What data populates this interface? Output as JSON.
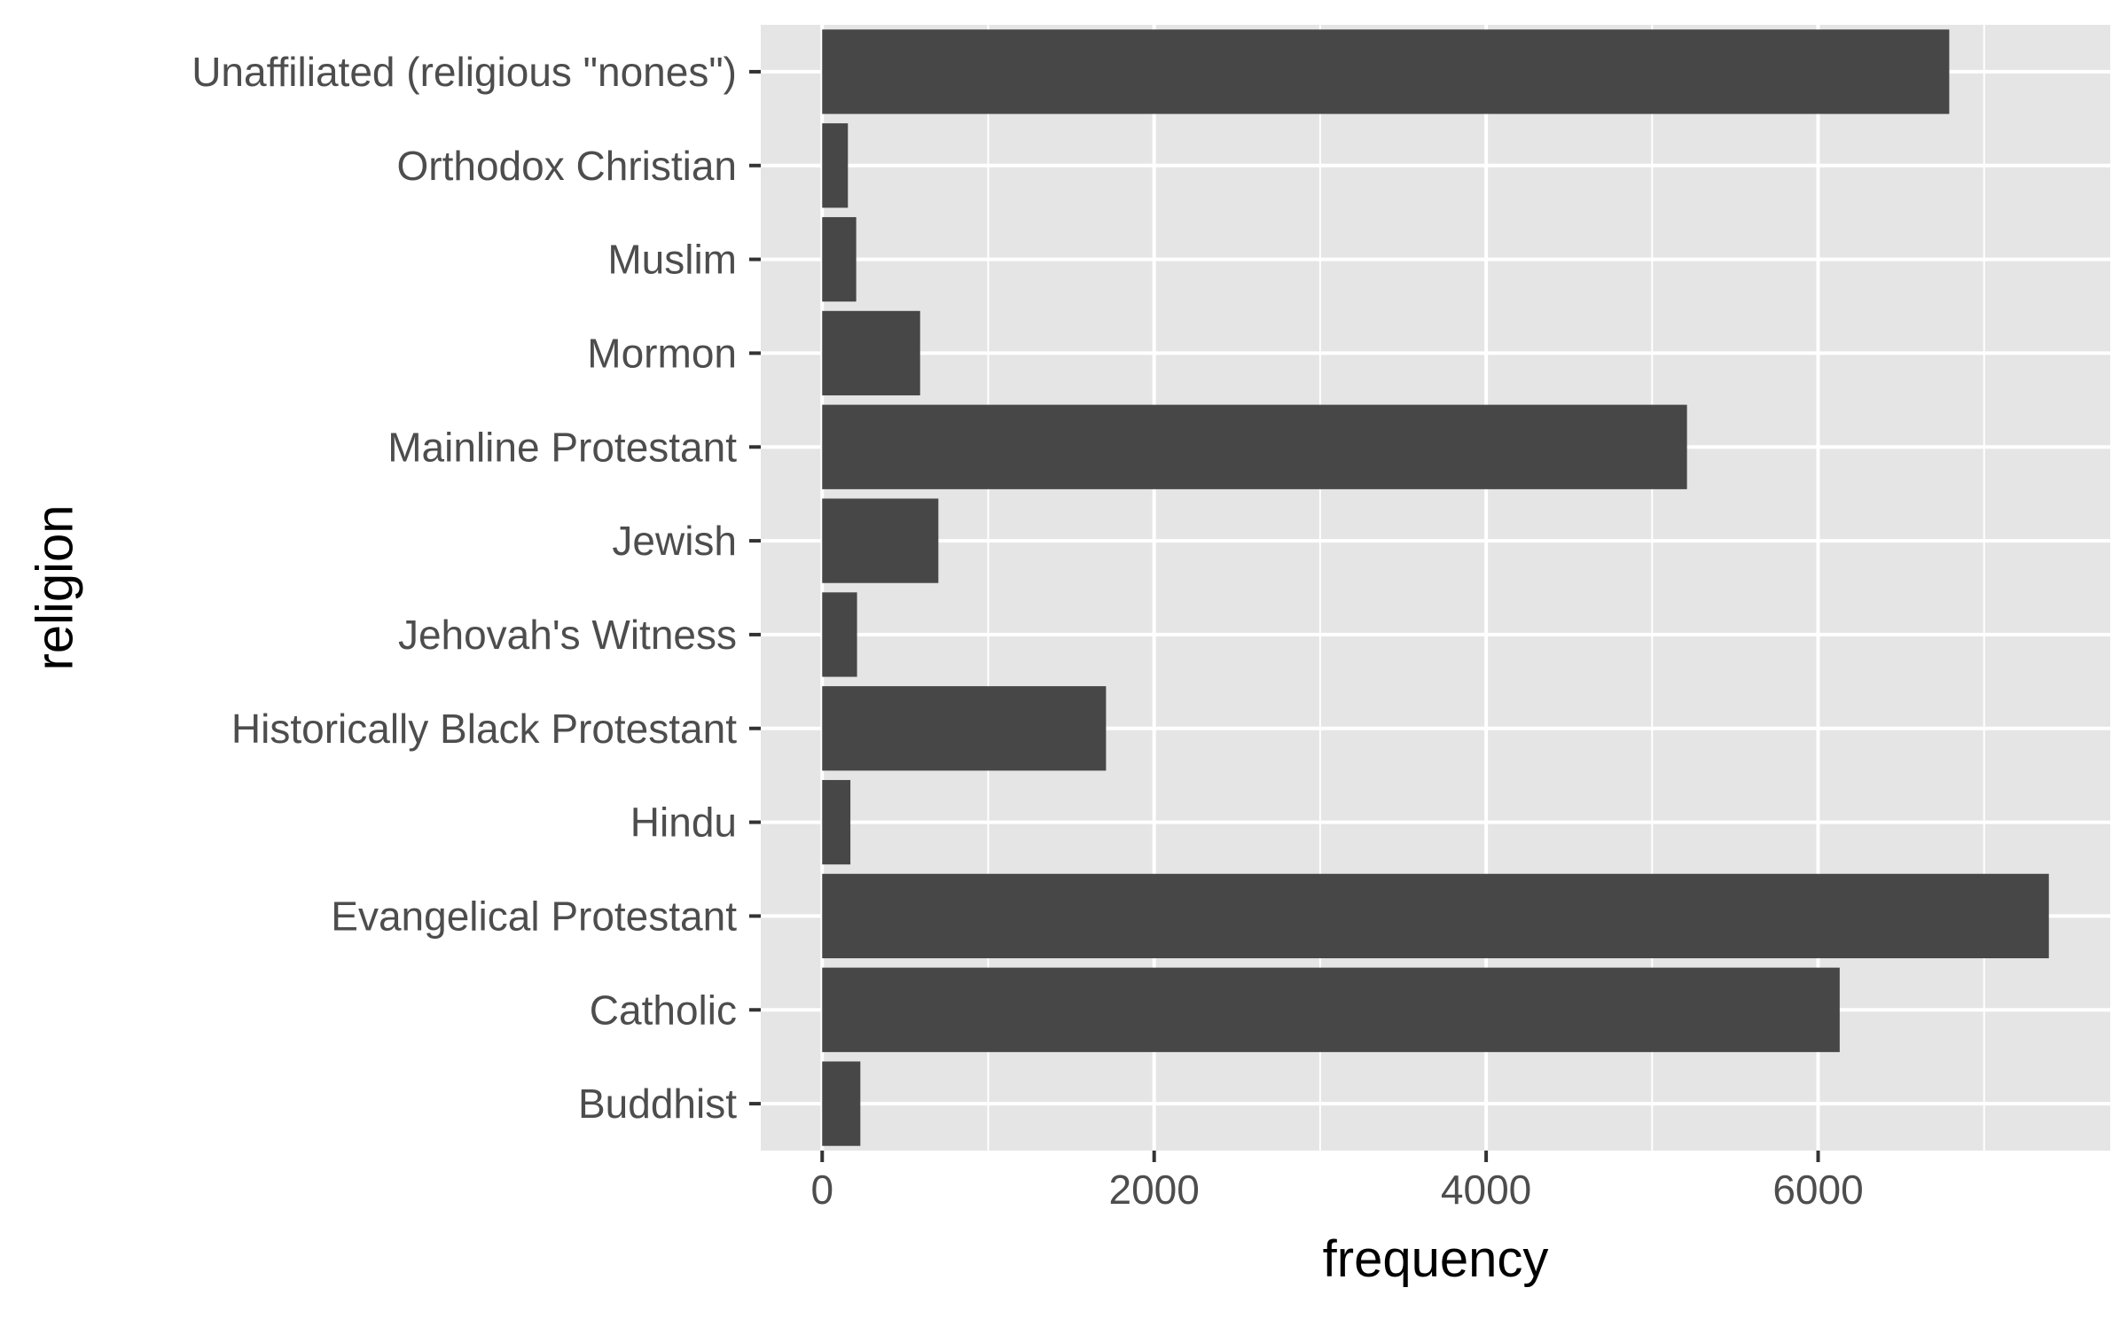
{
  "chart_data": {
    "type": "bar",
    "orientation": "horizontal",
    "categories": [
      "Buddhist",
      "Catholic",
      "Evangelical Protestant",
      "Hindu",
      "Historically Black Protestant",
      "Jehovah's Witness",
      "Jewish",
      "Mainline Protestant",
      "Mormon",
      "Muslim",
      "Orthodox Christian",
      "Unaffiliated (religious \"nones\")"
    ],
    "values": [
      230,
      6130,
      7390,
      170,
      1710,
      210,
      700,
      5210,
      590,
      205,
      155,
      6790
    ],
    "xlabel": "frequency",
    "ylabel": "religion",
    "xlim": [
      -370,
      7760
    ],
    "xticks": [
      0,
      2000,
      4000,
      6000
    ],
    "xtick_labels": [
      "0",
      "2000",
      "4000",
      "6000"
    ],
    "grid": true,
    "legend": "none",
    "colors": {
      "bar": "#474747",
      "panel": "#e5e5e5",
      "grid": "#ffffff",
      "tick_label": "#4d4d4d",
      "tick_mark": "#333333"
    }
  }
}
